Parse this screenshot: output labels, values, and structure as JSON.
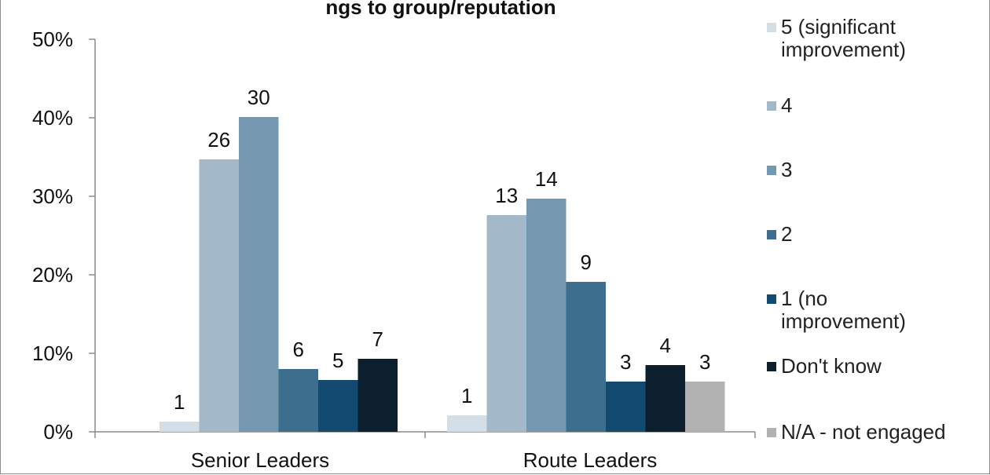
{
  "chart_data": {
    "type": "bar",
    "title": "ngs to group/reputation",
    "xlabel": "",
    "ylabel": "",
    "ylim": [
      0,
      50
    ],
    "ytick_labels": [
      "0%",
      "10%",
      "20%",
      "30%",
      "40%",
      "50%"
    ],
    "categories": [
      "Senior Leaders",
      "Route Leaders"
    ],
    "grid": false,
    "legend_position": "right",
    "series": [
      {
        "name": "5 (significant\nimprovement)",
        "color": "#d3dee7",
        "values": [
          1.3,
          2.1
        ],
        "labels": [
          "1",
          "1"
        ]
      },
      {
        "name": "4",
        "color": "#a3b8c9",
        "values": [
          34.7,
          27.6
        ],
        "labels": [
          "26",
          "13"
        ]
      },
      {
        "name": "3",
        "color": "#7398b0",
        "values": [
          40.1,
          29.7
        ],
        "labels": [
          "30",
          "14"
        ]
      },
      {
        "name": "2",
        "color": "#3d6e8e",
        "values": [
          8.0,
          19.1
        ],
        "labels": [
          "6",
          "9"
        ]
      },
      {
        "name": "1 (no\nimprovement)",
        "color": "#124a70",
        "values": [
          6.6,
          6.4
        ],
        "labels": [
          "5",
          "3"
        ]
      },
      {
        "name": "Don't know",
        "color": "#0b1f2f",
        "values": [
          9.3,
          8.5
        ],
        "labels": [
          "7",
          "4"
        ]
      },
      {
        "name": "N/A - not engaged",
        "color": "#b1b1b1",
        "values": [
          null,
          6.4
        ],
        "labels": [
          null,
          "3"
        ]
      }
    ]
  }
}
